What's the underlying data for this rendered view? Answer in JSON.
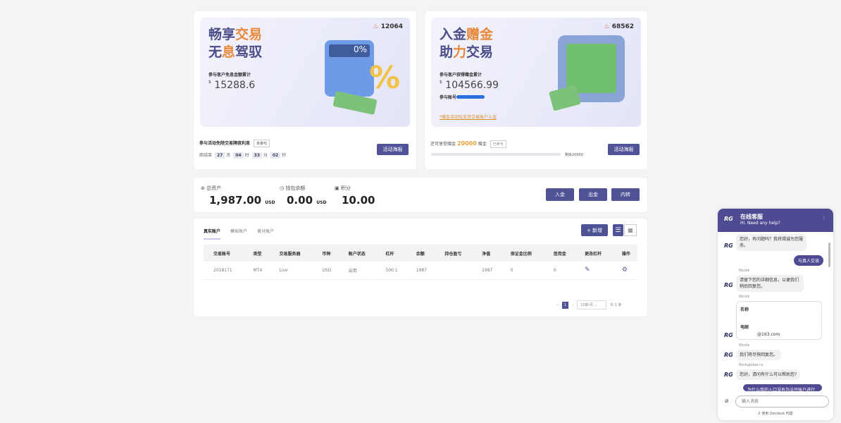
{
  "promo1": {
    "title_a": "畅享",
    "title_b": "交易",
    "title_c": "无",
    "title_d": "息",
    "title_e": "驾驭",
    "hot": "12064",
    "stat_label": "参与客户免息金额累计",
    "currency": "$",
    "amount": "15288.6",
    "desc": "参与活动免除交易隔夜利息",
    "tag": "未参与",
    "countdown_label": "距结束",
    "days": "27",
    "d": "天",
    "hours": "04",
    "h": "时",
    "minutes": "33",
    "m": "分",
    "seconds": "02",
    "s": "秒",
    "button": "活动海报"
  },
  "promo2": {
    "title_a": "入金",
    "title_b": "赠金",
    "title_c": "助",
    "title_d": "力",
    "title_e": "交易",
    "hot": "68562",
    "stat_label": "参与客户获得赠金累计",
    "currency": "$",
    "amount": "104566.99",
    "account_label": "参与账号",
    "note": "*赠金活动仅支持交易账户入金",
    "remain_label": "还可享受赠金",
    "remain": "20000",
    "remain_unit": "赠金",
    "tag": "已参与",
    "progress_label": "剩余20000",
    "progress": 0,
    "button": "活动海报"
  },
  "assets": {
    "total_label": "总资产",
    "total": "1,987.00",
    "total_unit": "USD",
    "wallet_label": "钱包余额",
    "wallet": "0.00",
    "wallet_unit": "USD",
    "points_label": "积分",
    "points": "10.00",
    "deposit": "入金",
    "withdraw": "出金",
    "transfer": "内转"
  },
  "accounts": {
    "tabs": [
      "真实账户",
      "模拟账户",
      "美分账户"
    ],
    "active_tab": 0,
    "new_button": "+ 新增",
    "columns": [
      "交易账号",
      "类型",
      "交易服务器",
      "币种",
      "账户状态",
      "杠杆",
      "余额",
      "持仓盈亏",
      "净值",
      "保证金比例",
      "信用金",
      "更改杠杆",
      "操作"
    ],
    "rows": [
      [
        "2018171",
        "MT4",
        "Live",
        "USD",
        "启用",
        "500:1",
        "1987",
        "",
        "1987",
        "0",
        "0"
      ]
    ],
    "page": "1",
    "page_size": "10条/页",
    "total": "共 1 条"
  },
  "chat": {
    "title": "在线客服",
    "subtitle": "Hi. Need any help?",
    "logo": "RG",
    "msg1": "您好，有问题吗？我将竭诚为您服务。",
    "me1": "与真人交谈",
    "agent1": "Nicole",
    "msg2": "请留下您的详细信息，以便我们稍后回复您。",
    "agent2": "Nicole",
    "form_name": "名称",
    "form_email": "电邮",
    "email": "@163.com",
    "agent3": "Nicole",
    "msg3": "我们将尽快回复您。",
    "agent4": "Rockglobal-cs",
    "msg4": "您好，请问有什么可以帮助您?",
    "me2": "为什么我的入口没有办法开账户进行",
    "placeholder": "输入消息",
    "footer": "使用 Zendesk 构建"
  },
  "colors": {
    "accent": "#4f5396",
    "orange": "#e8883a"
  }
}
